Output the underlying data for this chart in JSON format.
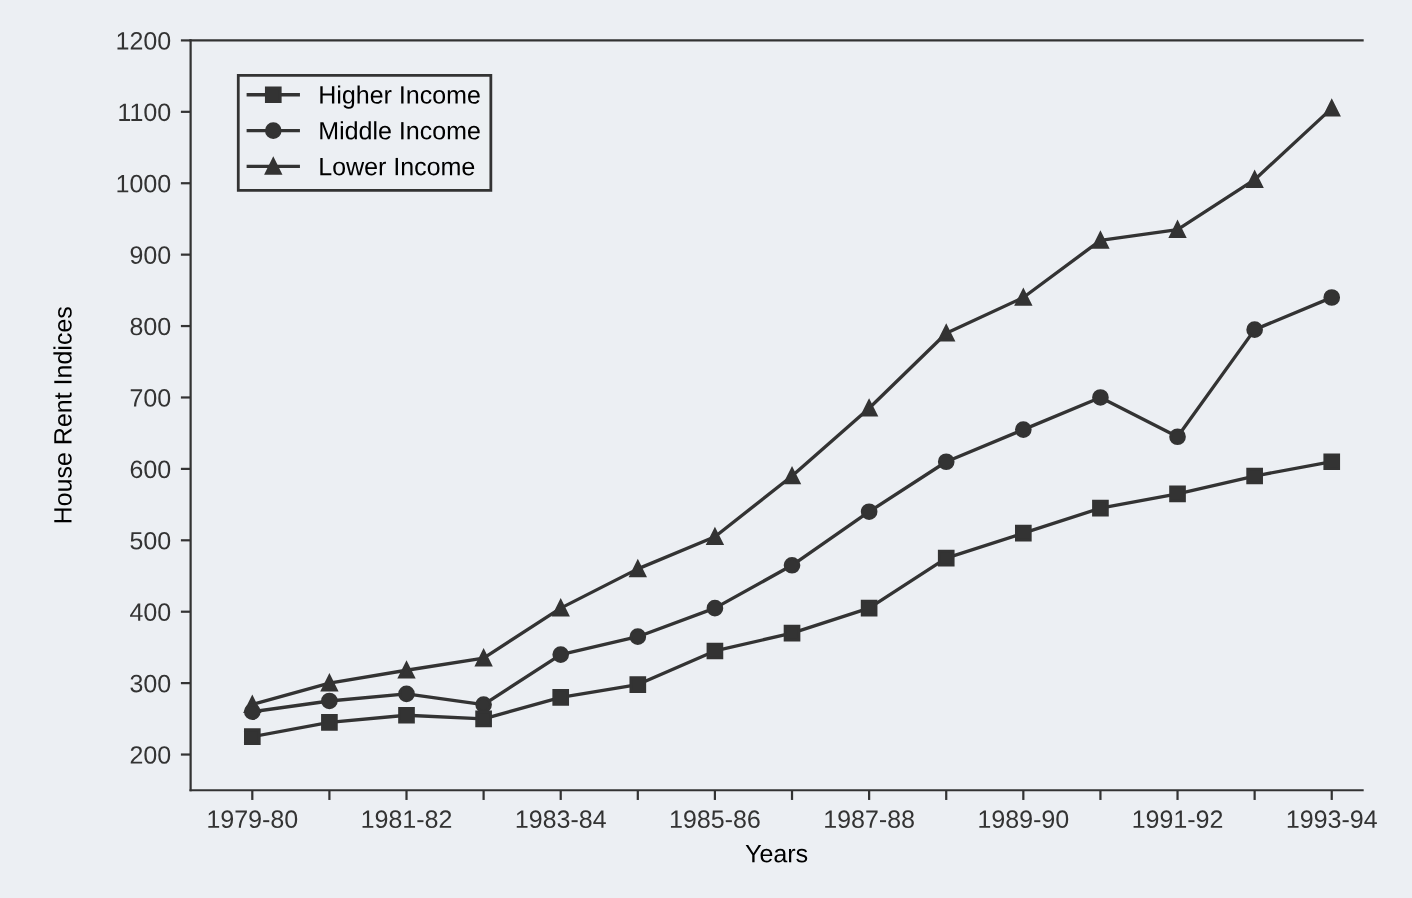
{
  "chart_data": {
    "type": "line",
    "xlabel": "Years",
    "ylabel": "House Rent Indices",
    "categories": [
      "1979-80",
      null,
      "1981-82",
      null,
      "1983-84",
      null,
      "1985-86",
      null,
      "1987-88",
      null,
      "1989-90",
      null,
      "1991-92",
      null,
      "1993-94"
    ],
    "series": [
      {
        "name": "Higher Income",
        "color": "#333333",
        "marker": "square",
        "values": [
          225,
          245,
          255,
          250,
          280,
          298,
          345,
          370,
          405,
          475,
          510,
          545,
          565,
          590,
          610
        ]
      },
      {
        "name": "Middle Income",
        "color": "#333333",
        "marker": "circle",
        "values": [
          260,
          275,
          285,
          270,
          340,
          365,
          405,
          465,
          540,
          610,
          655,
          700,
          645,
          795,
          840
        ]
      },
      {
        "name": "Lower Income",
        "color": "#333333",
        "marker": "triangle",
        "values": [
          270,
          300,
          318,
          335,
          405,
          460,
          505,
          590,
          685,
          790,
          840,
          920,
          935,
          1005,
          1105
        ]
      }
    ],
    "ylim": [
      150,
      1200
    ],
    "yticks": [
      200,
      300,
      400,
      500,
      600,
      700,
      800,
      900,
      1000,
      1100,
      1200
    ],
    "grid": false,
    "legend": "top left",
    "line_style": "solid"
  }
}
